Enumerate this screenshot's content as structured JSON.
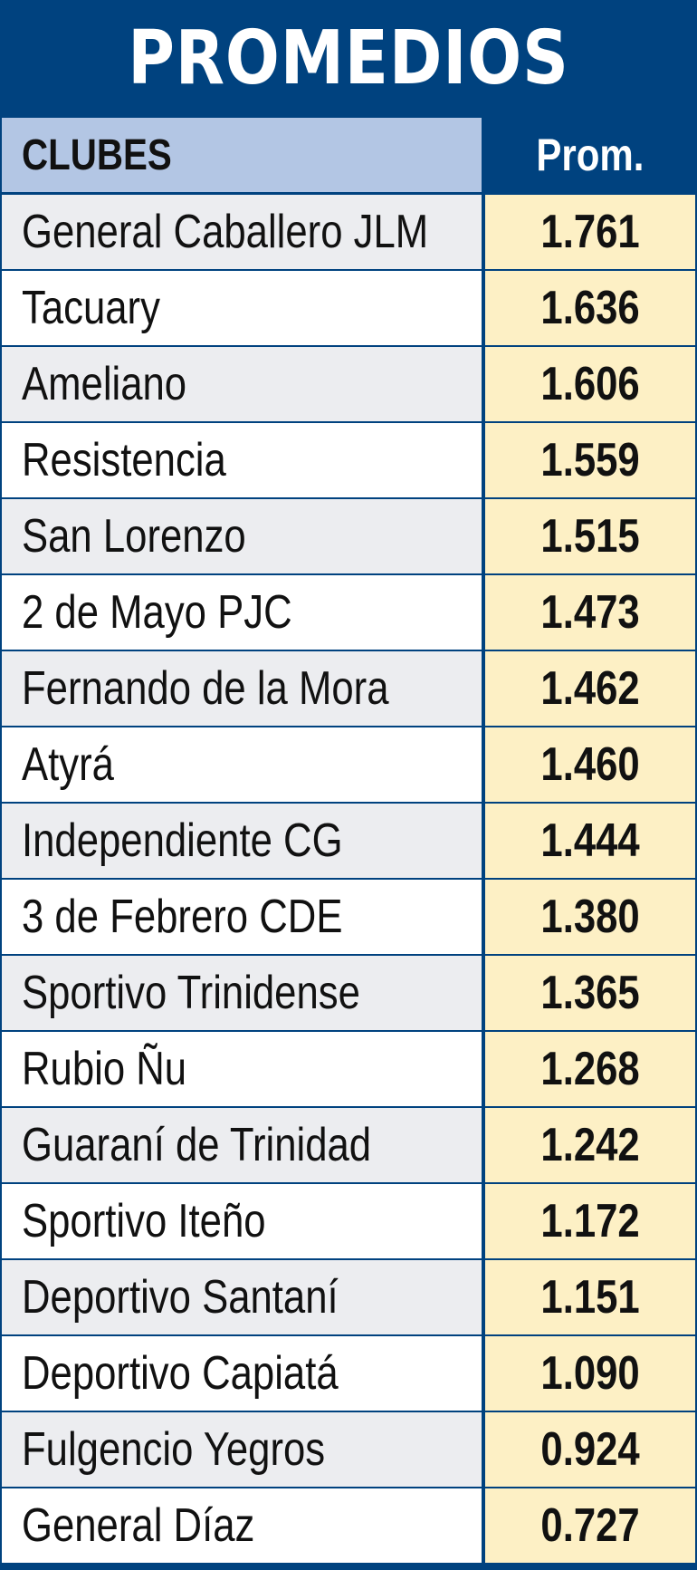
{
  "chart_data": {
    "type": "table",
    "title": "PROMEDIOS",
    "columns": [
      "CLUBES",
      "Prom."
    ],
    "rows": [
      {
        "club": "General Caballero JLM",
        "prom": "1.761"
      },
      {
        "club": "Tacuary",
        "prom": "1.636"
      },
      {
        "club": "Ameliano",
        "prom": "1.606"
      },
      {
        "club": "Resistencia",
        "prom": "1.559"
      },
      {
        "club": "San Lorenzo",
        "prom": "1.515"
      },
      {
        "club": "2 de Mayo PJC",
        "prom": "1.473"
      },
      {
        "club": "Fernando de la Mora",
        "prom": "1.462"
      },
      {
        "club": "Atyrá",
        "prom": "1.460"
      },
      {
        "club": "Independiente CG",
        "prom": "1.444"
      },
      {
        "club": "3 de Febrero CDE",
        "prom": "1.380"
      },
      {
        "club": "Sportivo Trinidense",
        "prom": "1.365"
      },
      {
        "club": "Rubio Ñu",
        "prom": "1.268"
      },
      {
        "club": "Guaraní de Trinidad",
        "prom": "1.242"
      },
      {
        "club": "Sportivo Iteño",
        "prom": "1.172"
      },
      {
        "club": "Deportivo Santaní",
        "prom": "1.151"
      },
      {
        "club": "Deportivo Capiatá",
        "prom": "1.090"
      },
      {
        "club": "Fulgencio Yegros",
        "prom": "0.924"
      },
      {
        "club": "General Díaz",
        "prom": "0.727"
      }
    ]
  },
  "colors": {
    "title_band": "#00427f",
    "header_name_bg": "#b3c6e4",
    "value_bg": "#fdf0c5",
    "stripe_bg": "#ecedf0"
  }
}
